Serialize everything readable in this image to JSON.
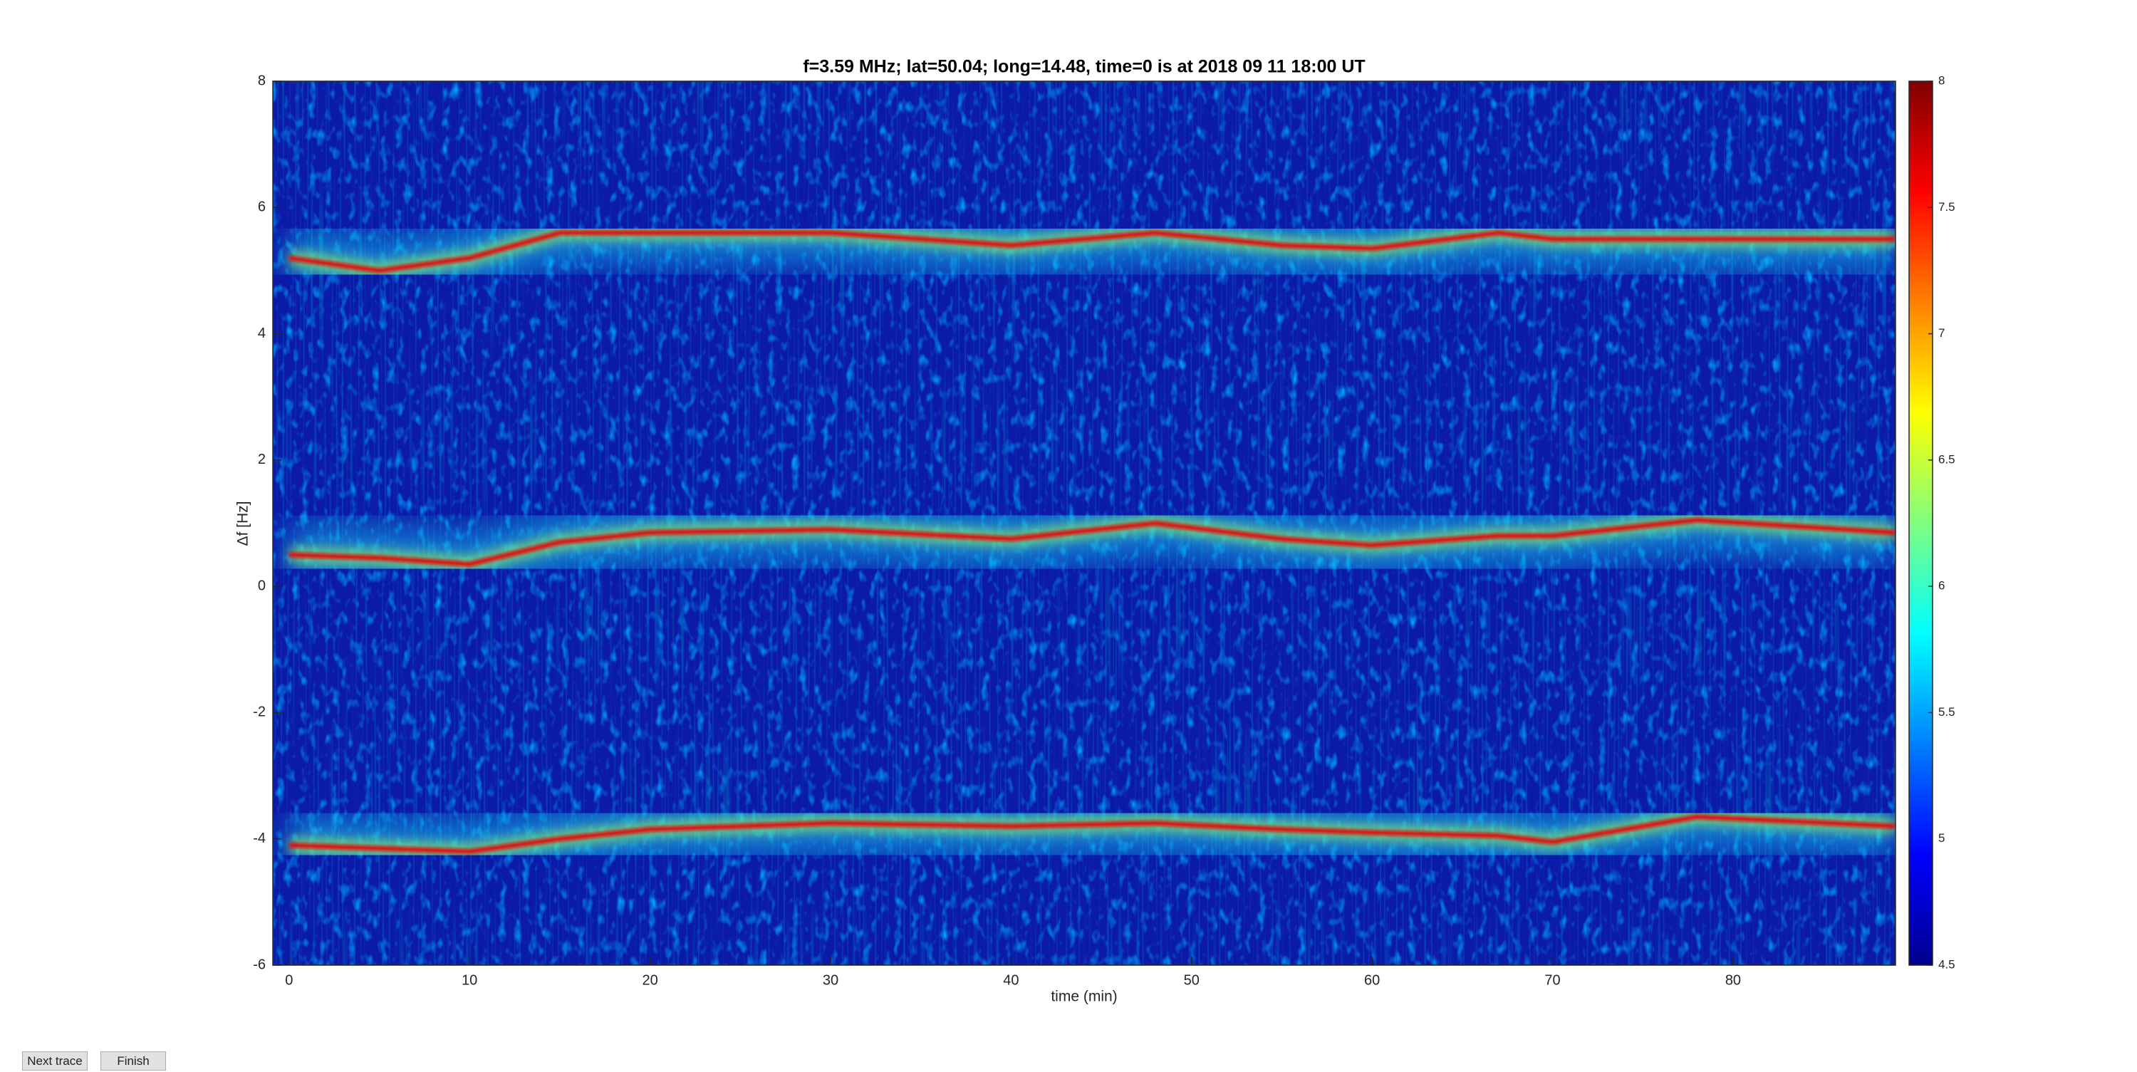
{
  "chart_data": {
    "type": "spectrogram",
    "title": "f=3.59 MHz;  lat=50.04; long=14.48, time=0 is at 2018 09 11 18:00 UT",
    "x_label": "time (min)",
    "y_label": "Δf [Hz]",
    "x": [
      0,
      5,
      10,
      15,
      20,
      30,
      40,
      48,
      55,
      60,
      67,
      70,
      78,
      89
    ],
    "series": [
      {
        "color": "#e01010",
        "values": [
          5.2,
          5.0,
          5.2,
          5.6,
          5.6,
          5.6,
          5.4,
          5.6,
          5.4,
          5.35,
          5.6,
          5.5,
          5.5,
          5.5
        ]
      },
      {
        "color": "#e01010",
        "values": [
          0.5,
          0.45,
          0.35,
          0.7,
          0.85,
          0.9,
          0.75,
          1.0,
          0.75,
          0.65,
          0.8,
          0.8,
          1.05,
          0.85
        ]
      },
      {
        "color": "#e01010",
        "values": [
          -4.1,
          -4.15,
          -4.2,
          -4.0,
          -3.85,
          -3.75,
          -3.8,
          -3.75,
          -3.85,
          -3.9,
          -3.95,
          -4.05,
          -3.65,
          -3.8
        ]
      }
    ],
    "xlim": [
      -0.9,
      89
    ],
    "xticks": [
      0,
      10,
      20,
      30,
      40,
      50,
      60,
      70,
      80
    ],
    "ylim": [
      -6,
      8
    ],
    "yticks": [
      -6,
      -4,
      -2,
      0,
      2,
      4,
      6,
      8
    ],
    "clim": [
      4.5,
      8
    ],
    "cticks": [
      4.5,
      5,
      5.5,
      6,
      6.5,
      7,
      7.5,
      8
    ]
  },
  "buttons": [
    "Next trace",
    "Finish"
  ]
}
